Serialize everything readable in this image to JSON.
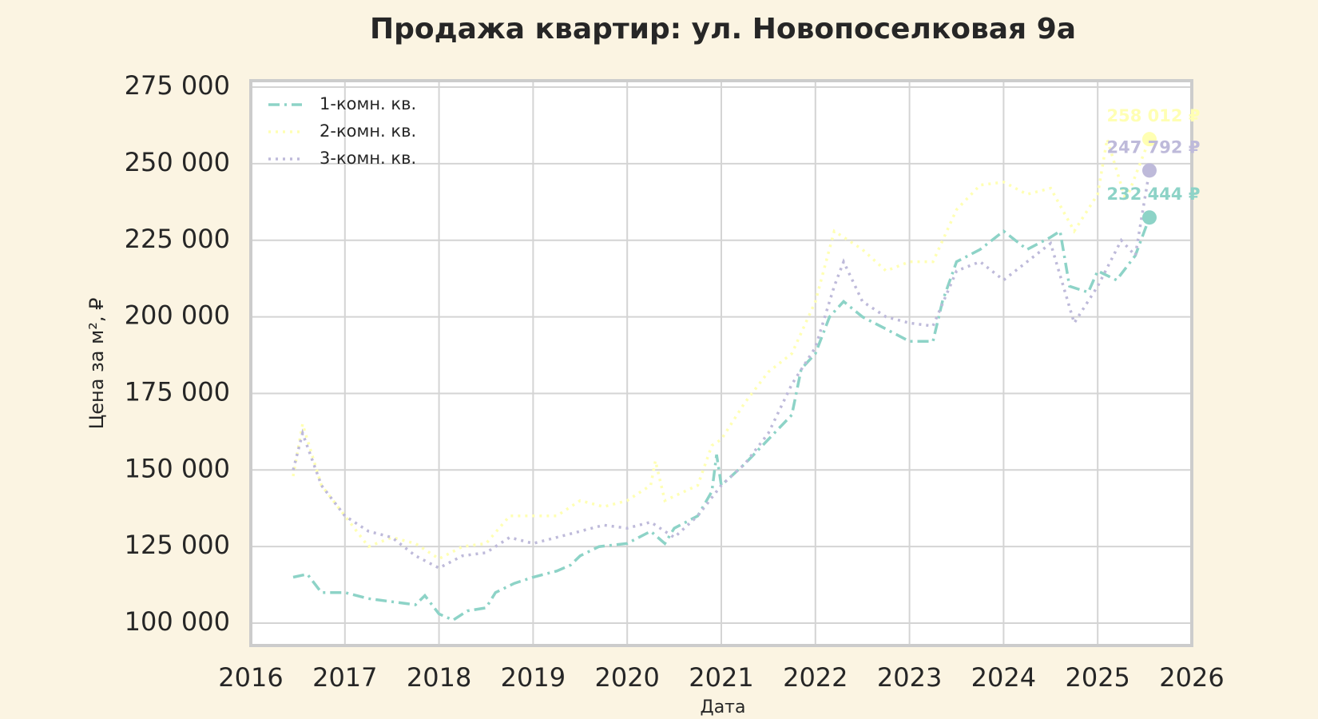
{
  "chart_data": {
    "type": "line",
    "title": "Продажа квартир: ул. Новопоселковая 9а",
    "x_label": "Дата",
    "y_label": "Цена за м², ₽",
    "xlim": [
      2016,
      2026
    ],
    "xticks": [
      2016,
      2017,
      2018,
      2019,
      2020,
      2021,
      2022,
      2023,
      2024,
      2025,
      2026
    ],
    "ylim": [
      92700,
      277100
    ],
    "yticks": [
      {
        "value": 100000,
        "label": "100 000"
      },
      {
        "value": 125000,
        "label": "125 000"
      },
      {
        "value": 150000,
        "label": "150 000"
      },
      {
        "value": 175000,
        "label": "175 000"
      },
      {
        "value": 200000,
        "label": "200 000"
      },
      {
        "value": 225000,
        "label": "225 000"
      },
      {
        "value": 250000,
        "label": "250 000"
      },
      {
        "value": 275000,
        "label": "275 000"
      }
    ],
    "grid": true,
    "legend": "upper left",
    "series": [
      {
        "name": "1-комн. кв.",
        "color": "#8dd3c7",
        "linestyle": "dashdot",
        "x": [
          2016.45,
          2016.6,
          2016.75,
          2017.0,
          2017.25,
          2017.5,
          2017.75,
          2017.85,
          2018.0,
          2018.15,
          2018.3,
          2018.5,
          2018.6,
          2018.8,
          2019.0,
          2019.25,
          2019.4,
          2019.5,
          2019.7,
          2020.0,
          2020.25,
          2020.4,
          2020.5,
          2020.75,
          2020.9,
          2020.95,
          2021.0,
          2021.25,
          2021.5,
          2021.75,
          2021.85,
          2022.0,
          2022.15,
          2022.3,
          2022.5,
          2022.75,
          2023.0,
          2023.25,
          2023.35,
          2023.5,
          2023.75,
          2024.0,
          2024.25,
          2024.5,
          2024.6,
          2024.7,
          2024.9,
          2025.0,
          2025.2,
          2025.4,
          2025.55
        ],
        "values": [
          115000,
          116000,
          110000,
          110000,
          108000,
          107000,
          106000,
          109000,
          103000,
          101000,
          104000,
          105000,
          110000,
          113000,
          115000,
          117000,
          119000,
          122000,
          125000,
          126000,
          130000,
          126000,
          131000,
          135000,
          143000,
          155000,
          145000,
          152000,
          160000,
          168000,
          183000,
          188000,
          200000,
          205000,
          200000,
          196000,
          192000,
          192000,
          205000,
          218000,
          222000,
          228000,
          222000,
          226000,
          228000,
          210000,
          208000,
          215000,
          212000,
          220000,
          232444
        ]
      },
      {
        "name": "2-комн. кв.",
        "color": "#ffffb3",
        "linestyle": "dotted",
        "x": [
          2016.45,
          2016.55,
          2016.75,
          2017.0,
          2017.25,
          2017.5,
          2017.75,
          2018.0,
          2018.25,
          2018.5,
          2018.75,
          2019.0,
          2019.25,
          2019.5,
          2019.75,
          2020.0,
          2020.25,
          2020.3,
          2020.4,
          2020.75,
          2020.9,
          2021.0,
          2021.25,
          2021.5,
          2021.75,
          2022.0,
          2022.2,
          2022.5,
          2022.75,
          2023.0,
          2023.25,
          2023.5,
          2023.75,
          2024.0,
          2024.25,
          2024.5,
          2024.75,
          2025.0,
          2025.1,
          2025.3,
          2025.55
        ],
        "values": [
          148000,
          165000,
          145000,
          135000,
          125000,
          128000,
          126000,
          121000,
          125000,
          126000,
          135000,
          135000,
          135000,
          140000,
          138000,
          140000,
          145000,
          153000,
          140000,
          145000,
          158000,
          160000,
          172000,
          182000,
          188000,
          205000,
          228000,
          222000,
          215000,
          218000,
          218000,
          235000,
          243000,
          244000,
          240000,
          242000,
          228000,
          240000,
          258000,
          238000,
          258012
        ]
      },
      {
        "name": "3-комн. кв.",
        "color": "#bebada",
        "linestyle": "dotted",
        "x": [
          2016.45,
          2016.55,
          2016.75,
          2017.0,
          2017.25,
          2017.5,
          2017.75,
          2018.0,
          2018.25,
          2018.5,
          2018.75,
          2019.0,
          2019.25,
          2019.5,
          2019.75,
          2020.0,
          2020.25,
          2020.5,
          2020.75,
          2021.0,
          2021.25,
          2021.5,
          2021.75,
          2022.0,
          2022.2,
          2022.3,
          2022.5,
          2022.75,
          2023.0,
          2023.25,
          2023.5,
          2023.75,
          2024.0,
          2024.25,
          2024.5,
          2024.75,
          2025.0,
          2025.25,
          2025.4,
          2025.55
        ],
        "values": [
          150000,
          162000,
          145000,
          135000,
          130000,
          128000,
          122000,
          118000,
          122000,
          123000,
          128000,
          126000,
          128000,
          130000,
          132000,
          131000,
          133000,
          128000,
          135000,
          145000,
          152000,
          162000,
          178000,
          190000,
          210000,
          218000,
          205000,
          200000,
          198000,
          197000,
          215000,
          218000,
          212000,
          218000,
          224000,
          198000,
          210000,
          225000,
          220000,
          247792
        ]
      }
    ],
    "annotations": [
      {
        "text": "258 012 ₽",
        "x": 2025.55,
        "y": 258012,
        "color": "#ffffb3"
      },
      {
        "text": "247 792 ₽",
        "x": 2025.55,
        "y": 247792,
        "color": "#bebada"
      },
      {
        "text": "232 444 ₽",
        "x": 2025.55,
        "y": 232444,
        "color": "#8dd3c7"
      }
    ]
  }
}
